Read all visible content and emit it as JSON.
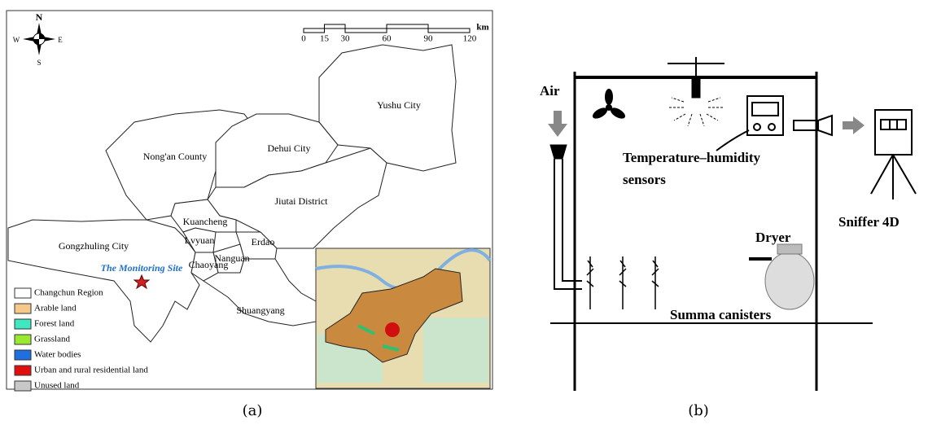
{
  "panel_a": {
    "compass": {
      "north": "N",
      "south": "S",
      "east": "E",
      "west": "W"
    },
    "scale": {
      "ticks": [
        0,
        15,
        30,
        60,
        90,
        120
      ],
      "unit": "km"
    },
    "regions": [
      "Yushu City",
      "Nong'an County",
      "Dehui City",
      "Jiutai District",
      "Kuancheng",
      "Lvyuan",
      "Gongzhuling City",
      "Erdao",
      "Nanguan",
      "Chaoyang",
      "Shuangyang"
    ],
    "site": "The Monitoring Site",
    "legend": [
      "Changchun Region",
      "Arable land",
      "Forest land",
      "Grassland",
      "Water bodies",
      "Urban and rural residential land",
      "Unused land"
    ],
    "caption": "(a)"
  },
  "panel_b": {
    "air": "Air",
    "sensor_line1": "Temperature–humidity",
    "sensor_line2": "sensors",
    "sniffer": "Sniffer 4D",
    "dryer": "Dryer",
    "canisters": "Summa canisters",
    "caption": "(b)"
  }
}
